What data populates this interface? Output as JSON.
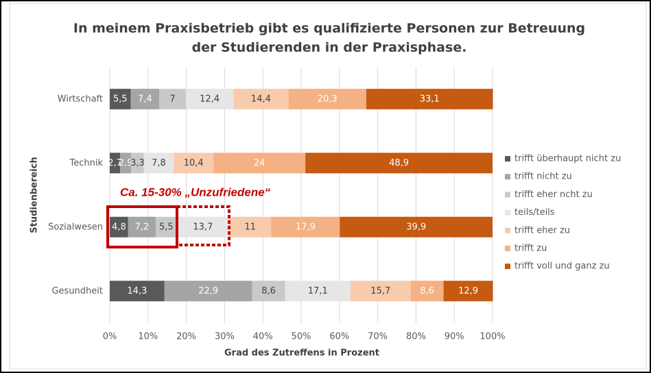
{
  "chart_data": {
    "type": "stacked-bar-horizontal",
    "title": [
      "In meinem Praxisbetrieb gibt es qualifizierte Personen zur Betreuung",
      "der Studierenden in der Praxisphase."
    ],
    "x_axis_label": "Grad des Zutreffens in Prozent",
    "y_axis_label": "Studienbereich",
    "annotation": "Ca. 15-30% „Unzufriedene“",
    "categories": [
      "Wirtschaft",
      "Technik",
      "Sozialwesen",
      "Gesundheit"
    ],
    "series": [
      {
        "name": "trifft überhaupt nicht zu",
        "color": "#595959",
        "values": [
          5.5,
          2.7,
          4.8,
          14.3
        ],
        "value_labels": [
          "5,5",
          "2,7",
          "4,8",
          "14,3"
        ]
      },
      {
        "name": "trifft nicht zu",
        "color": "#a5a5a5",
        "values": [
          7.4,
          2.9,
          7.2,
          22.9
        ],
        "value_labels": [
          "7,4",
          "2,9",
          "7,2",
          "22,9"
        ]
      },
      {
        "name": "trifft eher ncht zu",
        "color": "#c9c9c9",
        "values": [
          7,
          3.3,
          5.5,
          8.6
        ],
        "value_labels": [
          "7",
          "3,3",
          "5,5",
          "8,6"
        ]
      },
      {
        "name": "teils/teils",
        "color": "#e7e6e6",
        "values": [
          12.4,
          7.8,
          13.7,
          17.1
        ],
        "value_labels": [
          "12,4",
          "7,8",
          "13,7",
          "17,1"
        ]
      },
      {
        "name": "trifft eher zu",
        "color": "#f8cbad",
        "values": [
          14.4,
          10.4,
          11,
          15.7
        ],
        "value_labels": [
          "14,4",
          "10,4",
          "11",
          "15,7"
        ]
      },
      {
        "name": "trifft zu",
        "color": "#f4b183",
        "values": [
          20.3,
          24,
          17.9,
          8.6
        ],
        "value_labels": [
          "20,3",
          "24",
          "17,9",
          "8,6"
        ]
      },
      {
        "name": "trifft voll und ganz zu",
        "color": "#c55a11",
        "values": [
          33.1,
          48.9,
          39.9,
          12.9
        ],
        "value_labels": [
          "33,1",
          "48,9",
          "39,9",
          "12,9"
        ]
      }
    ],
    "xlim": [
      0,
      100
    ],
    "xticks": [
      {
        "value": 0,
        "label": "0%"
      },
      {
        "value": 10,
        "label": "10%"
      },
      {
        "value": 20,
        "label": "20%"
      },
      {
        "value": 30,
        "label": "30%"
      },
      {
        "value": 40,
        "label": "40%"
      },
      {
        "value": 50,
        "label": "50%"
      },
      {
        "value": 60,
        "label": "60%"
      },
      {
        "value": 70,
        "label": "70%"
      },
      {
        "value": 80,
        "label": "80%"
      },
      {
        "value": 90,
        "label": "90%"
      },
      {
        "value": 100,
        "label": "100%"
      }
    ],
    "grid": true,
    "legend": "right"
  }
}
